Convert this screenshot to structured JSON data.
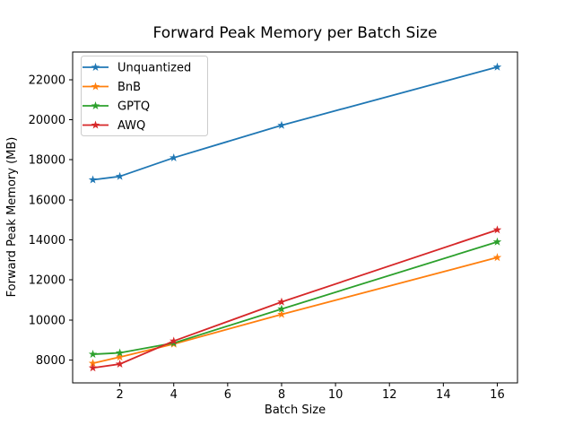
{
  "chart_data": {
    "type": "line",
    "title": "Forward Peak Memory per Batch Size",
    "xlabel": "Batch Size",
    "ylabel": "Forward Peak Memory (MB)",
    "x": [
      1,
      2,
      4,
      8,
      16
    ],
    "series": [
      {
        "name": "Unquantized",
        "color": "#1f77b4",
        "values": [
          17000,
          17170,
          18100,
          19720,
          22630
        ]
      },
      {
        "name": "BnB",
        "color": "#ff7f0e",
        "values": [
          7840,
          8150,
          8800,
          10280,
          13120
        ]
      },
      {
        "name": "GPTQ",
        "color": "#2ca02c",
        "values": [
          8290,
          8360,
          8850,
          10550,
          13900
        ]
      },
      {
        "name": "AWQ",
        "color": "#d62728",
        "values": [
          7610,
          7800,
          8950,
          10900,
          14500
        ]
      }
    ],
    "marker": "star",
    "xticks": [
      2,
      4,
      6,
      8,
      10,
      12,
      14,
      16
    ],
    "yticks": [
      8000,
      10000,
      12000,
      14000,
      16000,
      18000,
      20000,
      22000
    ],
    "xlim": [
      0.25,
      16.75
    ],
    "ylim": [
      6860,
      23380
    ],
    "grid": false,
    "legend_position": "upper-left",
    "background_color": "#ffffff",
    "axis_color": "#000000",
    "legend_border_color": "#cccccc"
  }
}
